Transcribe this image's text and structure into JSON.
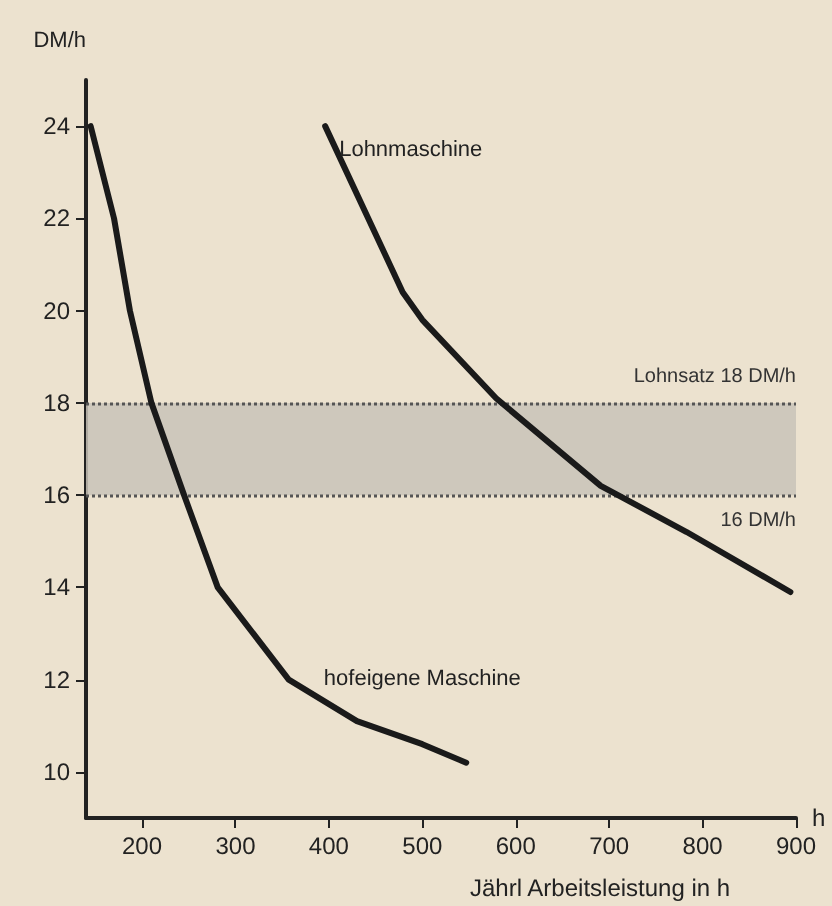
{
  "chart_data": {
    "type": "line",
    "xlabel": "Jährl Arbeitsleistung in h",
    "ylabel": "DM/h",
    "annotations": [
      "h"
    ],
    "xlim": [
      140,
      900
    ],
    "xticks": [
      200,
      300,
      400,
      500,
      600,
      700,
      800,
      900
    ],
    "ylim": [
      9,
      25
    ],
    "yticks": [
      10,
      12,
      14,
      16,
      18,
      20,
      22,
      24
    ],
    "series": [
      {
        "name": "hofeigene Maschine",
        "color": "#1a1a1a",
        "x": [
          145,
          170,
          187,
          210,
          245,
          281,
          357,
          430,
          500,
          547
        ],
        "values": [
          24,
          22,
          20,
          18,
          16,
          14,
          12,
          11.1,
          10.6,
          10.2
        ]
      },
      {
        "name": "Lohnmaschine",
        "color": "#1a1a1a",
        "x": [
          396,
          479,
          500,
          579,
          691,
          783,
          894
        ],
        "values": [
          24,
          20.4,
          19.8,
          18.1,
          16.2,
          15.2,
          13.9
        ]
      }
    ],
    "bands": [
      {
        "axis": "y",
        "from": 16,
        "to": 18,
        "color": "#c9c3b8"
      }
    ],
    "ref_lines": [
      {
        "axis": "y",
        "value": 18,
        "label": "Lohnsatz 18 DM/h",
        "color": "#555555",
        "line_style": "dotted"
      },
      {
        "axis": "y",
        "value": 16,
        "label": "16 DM/h",
        "color": "#555555",
        "line_style": "dotted"
      }
    ],
    "grid": false,
    "legend": false,
    "marker": "none",
    "line_style": "solid"
  }
}
